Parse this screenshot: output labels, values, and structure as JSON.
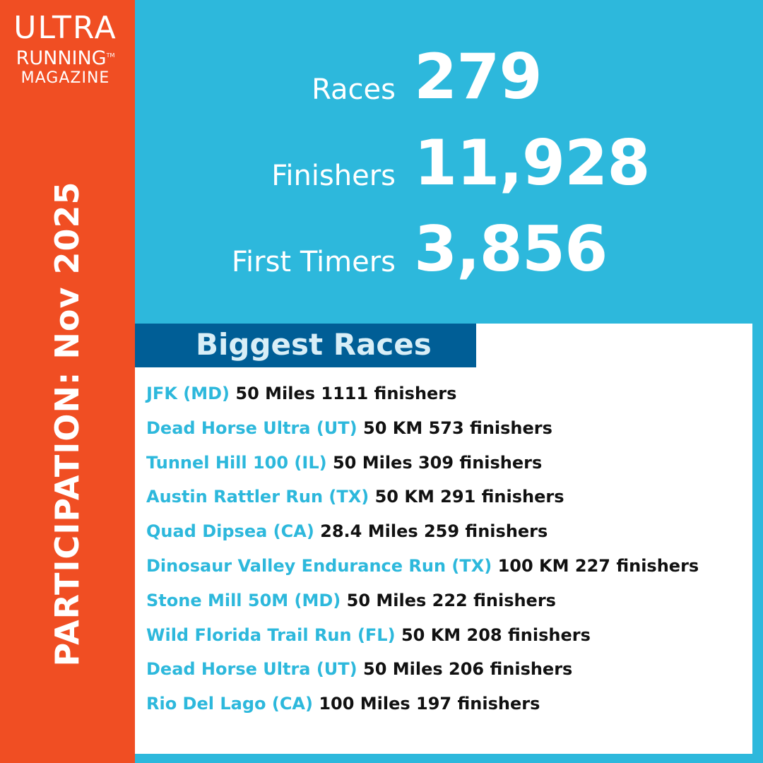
{
  "logo": {
    "line1": "ULTRA",
    "line2": "RUNNING",
    "trademark": "TM",
    "line3": "MAGAZINE"
  },
  "sidebar": {
    "title": "PARTICIPATION: Nov 2025"
  },
  "stats": [
    {
      "label": "Races",
      "value": "279"
    },
    {
      "label": "Finishers",
      "value": "11,928"
    },
    {
      "label": "First Timers",
      "value": "3,856"
    }
  ],
  "biggest_races": {
    "title": "Biggest Races",
    "items": [
      {
        "name": "JFK (MD)",
        "detail": "50 Miles 1111 finishers"
      },
      {
        "name": "Dead Horse Ultra (UT)",
        "detail": "50 KM 573 finishers"
      },
      {
        "name": "Tunnel Hill 100 (IL)",
        "detail": "50 Miles 309 finishers"
      },
      {
        "name": "Austin Rattler Run (TX)",
        "detail": "50 KM 291 finishers"
      },
      {
        "name": "Quad Dipsea (CA)",
        "detail": "28.4 Miles 259 finishers"
      },
      {
        "name": "Dinosaur Valley Endurance Run (TX)",
        "detail": "100 KM 227 finishers"
      },
      {
        "name": "Stone Mill 50M (MD)",
        "detail": "50 Miles 222 finishers"
      },
      {
        "name": "Wild Florida Trail Run (FL)",
        "detail": "50 KM 208 finishers"
      },
      {
        "name": "Dead Horse Ultra (UT)",
        "detail": "50 Miles 206 finishers"
      },
      {
        "name": "Rio Del Lago (CA)",
        "detail": "100 Miles 197 finishers"
      }
    ]
  },
  "colors": {
    "sidebar": "#f04e23",
    "background": "#2db8dc",
    "header": "#005e96",
    "race_name": "#2db8dc"
  }
}
